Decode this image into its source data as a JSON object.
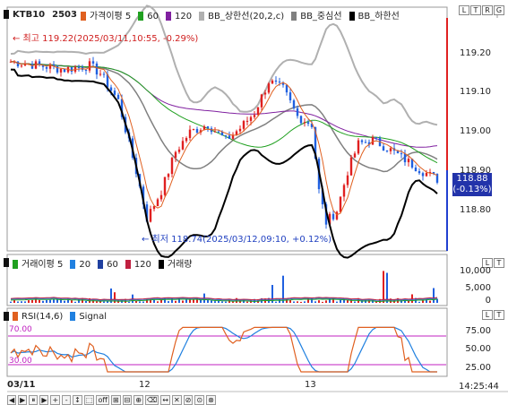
{
  "main_panel": {
    "symbol": "KTB10",
    "code": "2503",
    "legend": [
      {
        "text": "가격이평 5",
        "color": "#e06020"
      },
      {
        "text": "60",
        "color": "#20a020"
      },
      {
        "text": "120",
        "color": "#8020a0"
      },
      {
        "text": "BB_상한선(20,2,c)",
        "color": "#b0b0b0"
      },
      {
        "text": "BB_중심선",
        "color": "#808080"
      },
      {
        "text": "BB_하한선",
        "color": "#000000"
      }
    ],
    "corner_buttons": [
      "L",
      "T",
      "R",
      "G"
    ],
    "high_annotation": "← 최고 119.22(2025/03/11,10:55, -0.29%)",
    "low_annotation": "← 최저 118.74(2025/03/12,09:10, +0.12%)",
    "y_ticks": [
      "119.20",
      "119.10",
      "119.00",
      "118.90",
      "118.80"
    ],
    "current_price": "118.88",
    "current_change": "(-0.13%)"
  },
  "volume_panel": {
    "legend": [
      {
        "text": "거래이평 5",
        "color": "#20a020"
      },
      {
        "text": "20",
        "color": "#2080e0"
      },
      {
        "text": "60",
        "color": "#2040a0"
      },
      {
        "text": "120",
        "color": "#c02040"
      },
      {
        "text": "거래량",
        "color": "#000000"
      }
    ],
    "corner_buttons": [
      "L",
      "T"
    ],
    "y_ticks": [
      "10,000",
      "5,000",
      "0"
    ]
  },
  "rsi_panel": {
    "legend": [
      {
        "text": "RSI(14,6)",
        "color": "#e06020"
      },
      {
        "text": "Signal",
        "color": "#2080e0"
      }
    ],
    "corner_buttons": [
      "L",
      "T"
    ],
    "level_high": "70.00",
    "level_low": "30.00",
    "y_ticks": [
      "75.00",
      "50.00",
      "25.00"
    ]
  },
  "x_axis": {
    "labels": [
      "03/11",
      "12",
      "13"
    ],
    "time": "14:25:44"
  },
  "toolbar": {
    "buttons": [
      "◀",
      "▶",
      "⏸",
      "▶",
      "+",
      "-",
      "↕",
      "⬚",
      "off",
      "⊞",
      "⊟",
      "⊕",
      "⌫",
      "↔",
      "✕",
      "⊘",
      "⊙",
      "⊗"
    ]
  },
  "colors": {
    "bull": "#e02020",
    "bear": "#2060e0",
    "ma5": "#e06020",
    "ma60": "#20a020",
    "ma120": "#8020a0",
    "bb_upper": "#b0b0b0",
    "bb_mid": "#808080",
    "bb_lower": "#000000",
    "rsi": "#e06020",
    "signal": "#2080e0",
    "level_line": "#c020c0",
    "price_tag": "#2233aa"
  }
}
